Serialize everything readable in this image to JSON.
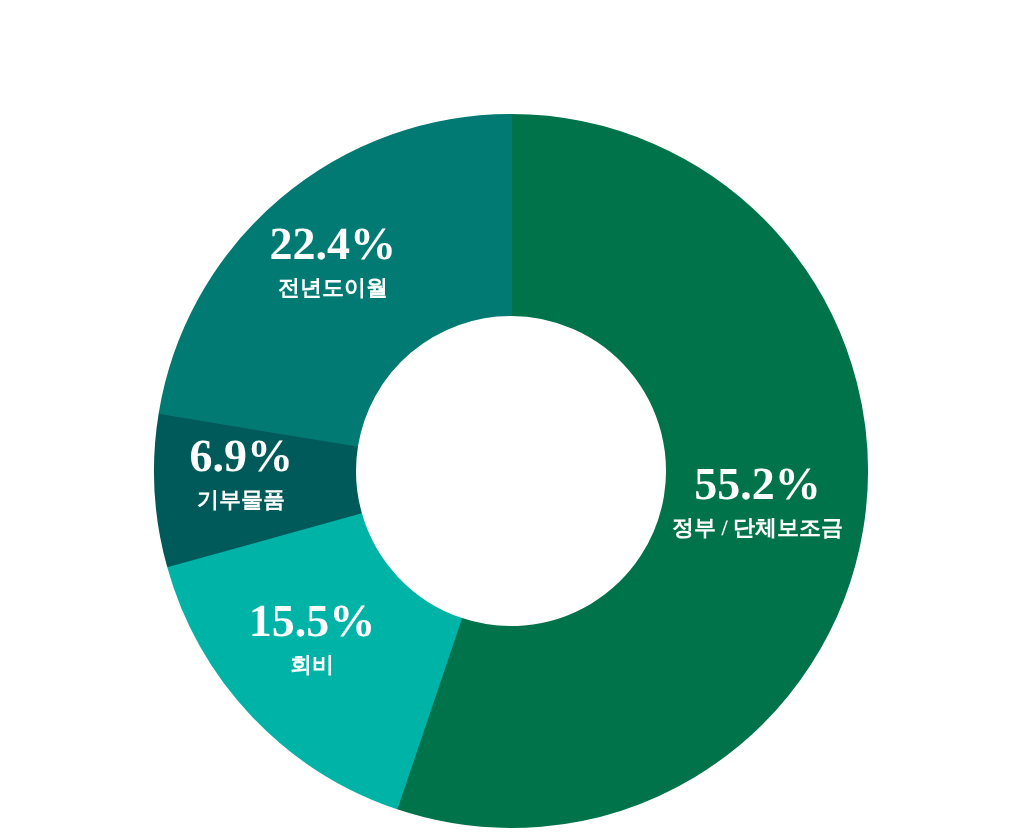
{
  "chart_data": {
    "type": "donut",
    "categories": [
      "정부 / 단체보조금",
      "회비",
      "기부물품",
      "전년도이월"
    ],
    "values": [
      55.2,
      15.5,
      6.9,
      22.4
    ],
    "colors": [
      "#00734a",
      "#00b3a7",
      "#005a5a",
      "#007a73"
    ],
    "value_labels": [
      "55.2%",
      "15.5%",
      "6.9%",
      "22.4%"
    ],
    "legend": false
  }
}
